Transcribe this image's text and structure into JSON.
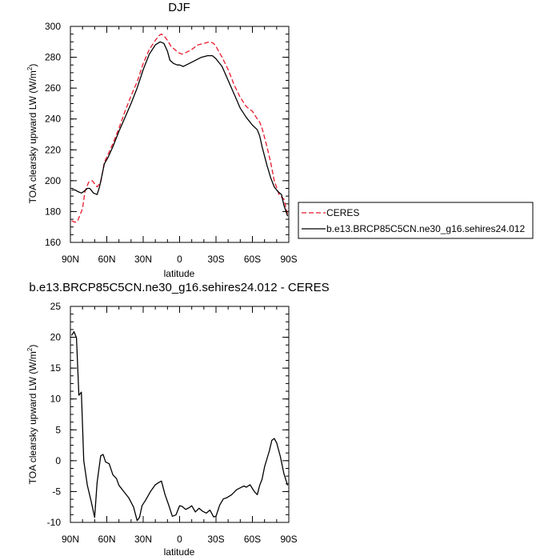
{
  "chart_data": [
    {
      "type": "line",
      "title": "DJF",
      "xlabel": "latitude",
      "ylabel": "TOA clearsky upward LW (W/m",
      "ylabel_sup": "2",
      "ylabel_tail": ")",
      "xlim": [
        90,
        -90
      ],
      "ylim": [
        160,
        300
      ],
      "x_ticks": [
        90,
        60,
        30,
        0,
        -30,
        -60,
        -90
      ],
      "x_tick_labels": [
        "90N",
        "60N",
        "30N",
        "0",
        "30S",
        "60S",
        "90S"
      ],
      "y_ticks": [
        160,
        180,
        200,
        220,
        240,
        260,
        280,
        300
      ],
      "y_tick_labels": [
        "160",
        "180",
        "200",
        "220",
        "240",
        "260",
        "280",
        "300"
      ],
      "grid": false,
      "legend_position": "right",
      "series": [
        {
          "name": "CERES",
          "color": "#e8192c",
          "dash": "dashed",
          "x": [
            89,
            86,
            84,
            80,
            78,
            75,
            72,
            68,
            65,
            62,
            59,
            55,
            50,
            45,
            40,
            35,
            30,
            25,
            20,
            17,
            15,
            13,
            10,
            7,
            4,
            1,
            -2,
            -5,
            -10,
            -15,
            -20,
            -25,
            -28,
            -30,
            -35,
            -40,
            -45,
            -50,
            -55,
            -60,
            -64,
            -66,
            -68,
            -72,
            -75,
            -78,
            -82,
            -86,
            -89
          ],
          "y": [
            174,
            173,
            174,
            182,
            193,
            199,
            200,
            196,
            199,
            212,
            217,
            224,
            234,
            245,
            255,
            264,
            276,
            285,
            291,
            294,
            295,
            294,
            291,
            287,
            285,
            283,
            282,
            283,
            285,
            288,
            289,
            290,
            289,
            287,
            280,
            272,
            262,
            254,
            248,
            245,
            240,
            238,
            234,
            222,
            212,
            200,
            191,
            188,
            178
          ]
        },
        {
          "name": "b.e13.BRCP85C5CN.ne30_g16.sehires24.012",
          "color": "#000000",
          "dash": "solid",
          "x": [
            89,
            86,
            84,
            81,
            79,
            76,
            74,
            71,
            68,
            66,
            62,
            59,
            55,
            50,
            45,
            40,
            35,
            30,
            25,
            20,
            16,
            13,
            10,
            8,
            5,
            2,
            0,
            -3,
            -8,
            -13,
            -18,
            -23,
            -27,
            -30,
            -35,
            -40,
            -45,
            -50,
            -55,
            -60,
            -64,
            -66,
            -68,
            -72,
            -75,
            -78,
            -81,
            -84,
            -86,
            -89
          ],
          "y": [
            194,
            194,
            193,
            192,
            193,
            195,
            195,
            192,
            191,
            196,
            211,
            215,
            222,
            232,
            241,
            250,
            260,
            272,
            282,
            288,
            290,
            289,
            284,
            278,
            276,
            275,
            275,
            274,
            276,
            278,
            280,
            281,
            281,
            279,
            274,
            265,
            256,
            247,
            241,
            236,
            233,
            229,
            222,
            210,
            202,
            196,
            193,
            191,
            184,
            177
          ]
        }
      ]
    },
    {
      "type": "line",
      "title": "b.e13.BRCP85C5CN.ne30_g16.sehires24.012 - CERES",
      "xlabel": "latitude",
      "ylabel": "TOA clearsky upward LW (W/m",
      "ylabel_sup": "2",
      "ylabel_tail": ")",
      "xlim": [
        90,
        -90
      ],
      "ylim": [
        -10,
        25
      ],
      "x_ticks": [
        90,
        60,
        30,
        0,
        -30,
        -60,
        -90
      ],
      "x_tick_labels": [
        "90N",
        "60N",
        "30N",
        "0",
        "30S",
        "60S",
        "90S"
      ],
      "y_ticks": [
        -10,
        -5,
        0,
        5,
        10,
        15,
        20,
        25
      ],
      "y_tick_labels": [
        "-10",
        "-5",
        "0",
        "5",
        "10",
        "15",
        "20",
        "25"
      ],
      "grid": false,
      "series": [
        {
          "name": "",
          "color": "#000000",
          "dash": "solid",
          "x": [
            89,
            87,
            85,
            83,
            81,
            79,
            76,
            73,
            70,
            68,
            65,
            63,
            61,
            58,
            55,
            52,
            50,
            46,
            42,
            38,
            35,
            33,
            31,
            28,
            24,
            20,
            17,
            15,
            12,
            9,
            6,
            3,
            0,
            -2,
            -5,
            -8,
            -10,
            -13,
            -16,
            -19,
            -22,
            -25,
            -28,
            -30,
            -33,
            -36,
            -39,
            -43,
            -47,
            -50,
            -53,
            -55,
            -58,
            -60,
            -62,
            -64,
            -66,
            -68,
            -70,
            -72,
            -74,
            -76,
            -78,
            -80,
            -83,
            -86,
            -89
          ],
          "y": [
            20.3,
            20.9,
            19.9,
            10.6,
            11.1,
            0,
            -4,
            -6.5,
            -9.2,
            -3.5,
            0.8,
            1,
            -0.2,
            -0.5,
            -2.3,
            -2.9,
            -4,
            -5,
            -6,
            -7.5,
            -9.7,
            -9.2,
            -7.3,
            -6.4,
            -5,
            -3.9,
            -3.5,
            -3.3,
            -5.5,
            -7.2,
            -9,
            -8.8,
            -7.3,
            -7.4,
            -7.9,
            -7.6,
            -7.3,
            -8.3,
            -7.7,
            -8.2,
            -8.5,
            -8,
            -9.1,
            -9,
            -7.2,
            -6.2,
            -6,
            -5.5,
            -4.7,
            -4.4,
            -4.1,
            -4.3,
            -3.9,
            -4.5,
            -5.1,
            -5.5,
            -4,
            -3,
            -1,
            0.3,
            1.6,
            3.3,
            3.6,
            2.9,
            0.7,
            -2.1,
            -4
          ]
        }
      ]
    }
  ]
}
